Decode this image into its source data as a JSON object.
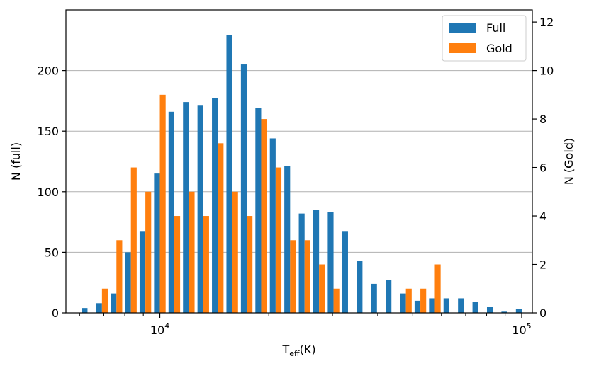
{
  "chart_data": {
    "type": "bar",
    "title": "",
    "xlabel": "T",
    "xlabel_sub": "eff",
    "xlabel_suffix": "(K)",
    "ylabel_left": "N (full)",
    "ylabel_right": "N (Gold)",
    "x_scale": "log",
    "xlim": [
      5500,
      107000
    ],
    "ylim_left": [
      0,
      250
    ],
    "ylim_right": [
      0,
      12.5
    ],
    "x_tick_labels": [
      {
        "value": 10000,
        "base": "10",
        "exp": "4"
      },
      {
        "value": 100000,
        "base": "10",
        "exp": "5"
      }
    ],
    "y_ticks_left": [
      0,
      50,
      100,
      150,
      200
    ],
    "y_ticks_right": [
      0,
      2,
      4,
      6,
      8,
      10,
      12
    ],
    "grid": "horizontal (left axis)",
    "legend_position": "top-right",
    "colors": {
      "full": "#1f77b4",
      "gold": "#ff7f0e"
    },
    "bins_log10": [
      3.8,
      3.84,
      3.88,
      3.92,
      3.96,
      4.0,
      4.04,
      4.08,
      4.12,
      4.16,
      4.2,
      4.24,
      4.28,
      4.32,
      4.36,
      4.4,
      4.44,
      4.48,
      4.52,
      4.56,
      4.6,
      4.64,
      4.68,
      4.72,
      4.76,
      4.8,
      4.84,
      4.88,
      4.92,
      4.96,
      5.0
    ],
    "series": [
      {
        "name": "Full",
        "axis": "left",
        "values": [
          4,
          8,
          16,
          50,
          67,
          115,
          166,
          174,
          171,
          177,
          229,
          205,
          169,
          144,
          121,
          82,
          85,
          83,
          67,
          43,
          24,
          27,
          16,
          10,
          12,
          12,
          12,
          9,
          5,
          1,
          3
        ]
      },
      {
        "name": "Gold",
        "axis": "right",
        "values": [
          0,
          1,
          3,
          6,
          5,
          9,
          4,
          5,
          4,
          7,
          5,
          4,
          8,
          6,
          3,
          3,
          2,
          1,
          0,
          0,
          0,
          0,
          1,
          1,
          2,
          0,
          0,
          0,
          0,
          0,
          0
        ]
      }
    ]
  }
}
